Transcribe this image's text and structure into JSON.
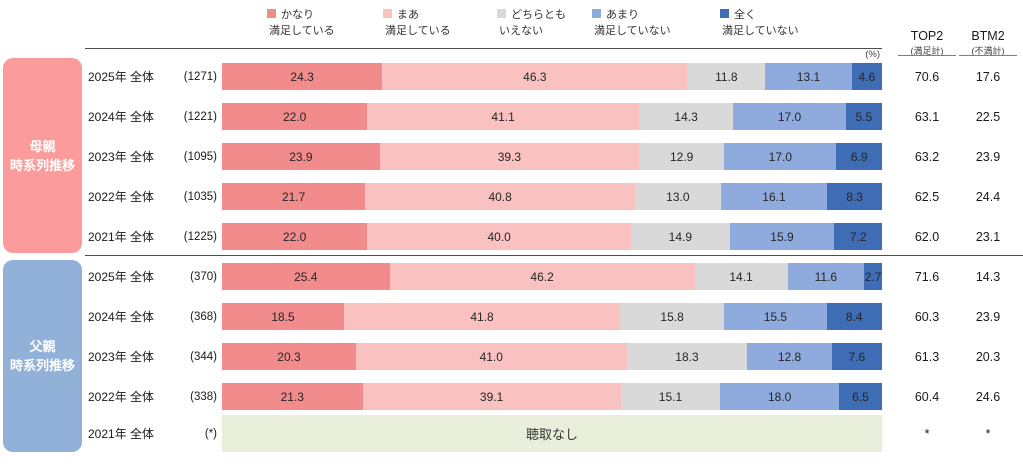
{
  "header": {
    "percent_label": "(%)",
    "top2": {
      "title": "TOP2",
      "subtitle": "(満足計)"
    },
    "btm2": {
      "title": "BTM2",
      "subtitle": "(不満計)"
    }
  },
  "legend_items": [
    {
      "line1": "かなり",
      "line2": "満足している"
    },
    {
      "line1": "まあ",
      "line2": "満足している"
    },
    {
      "line1": "どちらとも",
      "line2": "いえない"
    },
    {
      "line1": "あまり",
      "line2": "満足していない"
    },
    {
      "line1": "全く",
      "line2": "満足していない"
    }
  ],
  "sections": [
    {
      "panel": {
        "line1": "母親",
        "line2": "時系列推移",
        "color": "#FB9B9B"
      }
    },
    {
      "panel": {
        "line1": "父親",
        "line2": "時系列推移",
        "color": "#92B1D8"
      }
    }
  ],
  "chart_data": {
    "type": "bar",
    "orientation": "horizontal",
    "stacked": true,
    "unit": "%",
    "series_labels": [
      "かなり満足している",
      "まあ満足している",
      "どちらともいえない",
      "あまり満足していない",
      "全く満足していない"
    ],
    "colors": [
      "#F28B8B",
      "#FAC1C1",
      "#D9D9D9",
      "#8FAADC",
      "#3E6CB5"
    ],
    "no_data_fill": "#EAEFDB",
    "extra_columns": [
      "TOP2 (満足計)",
      "BTM2 (不満計)"
    ],
    "groups": [
      {
        "name": "母親時系列推移",
        "rows": [
          {
            "label": "2025年 全体",
            "n": "(1271)",
            "values": [
              24.3,
              46.3,
              11.8,
              13.1,
              4.6
            ],
            "top2": "70.6",
            "btm2": "17.6"
          },
          {
            "label": "2024年 全体",
            "n": "(1221)",
            "values": [
              22.0,
              41.1,
              14.3,
              17.0,
              5.5
            ],
            "top2": "63.1",
            "btm2": "22.5"
          },
          {
            "label": "2023年 全体",
            "n": "(1095)",
            "values": [
              23.9,
              39.3,
              12.9,
              17.0,
              6.9
            ],
            "top2": "63.2",
            "btm2": "23.9"
          },
          {
            "label": "2022年 全体",
            "n": "(1035)",
            "values": [
              21.7,
              40.8,
              13.0,
              16.1,
              8.3
            ],
            "top2": "62.5",
            "btm2": "24.4"
          },
          {
            "label": "2021年 全体",
            "n": "(1225)",
            "values": [
              22.0,
              40.0,
              14.9,
              15.9,
              7.2
            ],
            "top2": "62.0",
            "btm2": "23.1"
          }
        ]
      },
      {
        "name": "父親時系列推移",
        "rows": [
          {
            "label": "2025年 全体",
            "n": "(370)",
            "values": [
              25.4,
              46.2,
              14.1,
              11.6,
              2.7
            ],
            "top2": "71.6",
            "btm2": "14.3"
          },
          {
            "label": "2024年 全体",
            "n": "(368)",
            "values": [
              18.5,
              41.8,
              15.8,
              15.5,
              8.4
            ],
            "top2": "60.3",
            "btm2": "23.9"
          },
          {
            "label": "2023年 全体",
            "n": "(344)",
            "values": [
              20.3,
              41.0,
              18.3,
              12.8,
              7.6
            ],
            "top2": "61.3",
            "btm2": "20.3"
          },
          {
            "label": "2022年 全体",
            "n": "(338)",
            "values": [
              21.3,
              39.1,
              15.1,
              18.0,
              6.5
            ],
            "top2": "60.4",
            "btm2": "24.6"
          },
          {
            "label": "2021年 全体",
            "n": "(*)",
            "values": null,
            "note": "聴取なし",
            "top2": "*",
            "btm2": "*"
          }
        ]
      }
    ]
  }
}
